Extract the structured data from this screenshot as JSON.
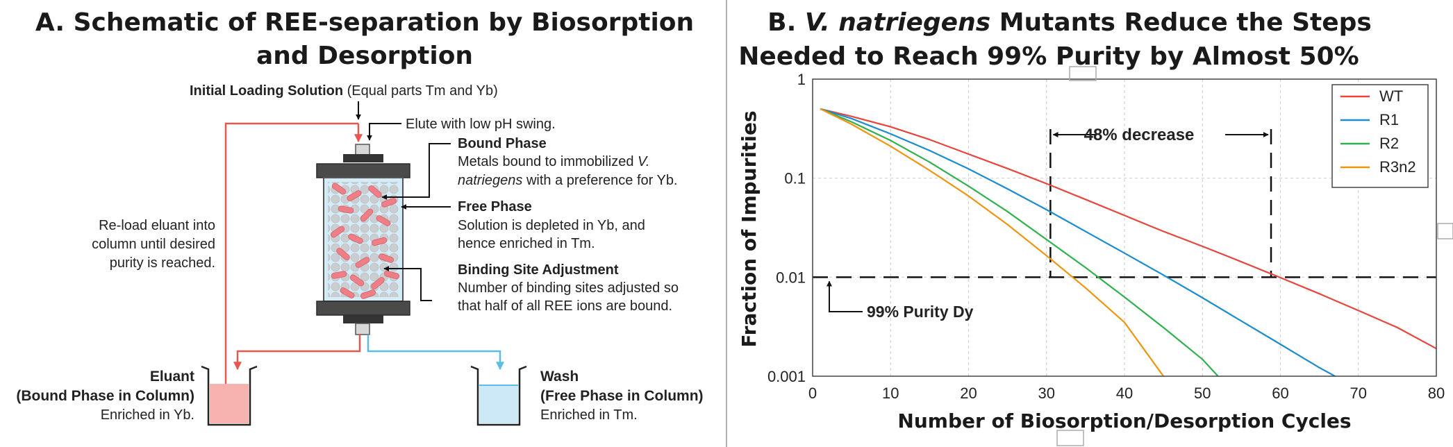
{
  "panel_a": {
    "title_line1": "A. Schematic of REE-separation by Biosorption",
    "title_line2": "and Desorption",
    "initial_bold": "Initial Loading Solution",
    "initial_rest": " (Equal parts Tm and Yb)",
    "elute": "Elute with low pH swing.",
    "bound_title": "Bound Phase",
    "bound_line1_a": "Metals bound to immobilized ",
    "bound_line1_b": "V.",
    "bound_line2_a": "natriegens",
    "bound_line2_b": " with a preference for Yb.",
    "free_title": "Free Phase",
    "free_line1": "Solution is depleted in Yb, and",
    "free_line2": "hence enriched in Tm.",
    "bsa_title": "Binding Site Adjustment",
    "bsa_line1": "Number of binding sites adjusted so",
    "bsa_line2": "that half of all REE ions are bound.",
    "reload_line1": "Re-load eluant into",
    "reload_line2": "column until desired",
    "reload_line3": "purity is reached.",
    "eluant_title1": "Eluant",
    "eluant_title2": "(Bound Phase in Column)",
    "eluant_sub": "Enriched in Yb.",
    "wash_title1": "Wash",
    "wash_title2": "(Free Phase in Column)",
    "wash_sub": "Enriched in Tm.",
    "colors": {
      "red": "#e8574f",
      "blue": "#5bbde6",
      "eluant_fill": "#f7b3b0",
      "wash_fill": "#cde9f7"
    }
  },
  "panel_b": {
    "title_line1_a": "B. ",
    "title_line1_b": "V. natriegens",
    "title_line1_c": " Mutants Reduce the Steps",
    "title_line2": "Needed to Reach 99% Purity by Almost 50%",
    "annotation_decrease": "48% decrease",
    "annotation_purity": "99% Purity Dy"
  },
  "chart_data": {
    "type": "line",
    "xlabel": "Number of Biosorption/Desorption Cycles",
    "ylabel": "Fraction of Impurities",
    "xlim": [
      0,
      80
    ],
    "ylim": [
      0.001,
      1
    ],
    "yscale": "log",
    "xticks": [
      "0",
      "10",
      "20",
      "30",
      "40",
      "50",
      "60",
      "70",
      "80"
    ],
    "yticks": [
      "1",
      "0.1",
      "0.01",
      "0.001"
    ],
    "grid": true,
    "legend_position": "top-right",
    "reference_y": 0.01,
    "marker_x": [
      30.5,
      58.8
    ],
    "series": [
      {
        "name": "WT",
        "color": "#e8453c",
        "x": [
          1,
          5,
          10,
          15,
          20,
          25,
          30,
          35,
          40,
          45,
          50,
          55,
          60,
          65,
          70,
          75,
          80
        ],
        "y": [
          0.5,
          0.42,
          0.33,
          0.245,
          0.175,
          0.125,
          0.088,
          0.061,
          0.042,
          0.029,
          0.0205,
          0.0143,
          0.0099,
          0.0068,
          0.0046,
          0.0031,
          0.0019
        ]
      },
      {
        "name": "R1",
        "color": "#1a8ccf",
        "x": [
          1,
          5,
          10,
          15,
          20,
          25,
          30,
          35,
          40,
          45,
          50,
          55,
          60,
          65,
          67
        ],
        "y": [
          0.5,
          0.4,
          0.28,
          0.19,
          0.124,
          0.078,
          0.048,
          0.029,
          0.0175,
          0.0105,
          0.0062,
          0.0036,
          0.0021,
          0.00122,
          0.001
        ]
      },
      {
        "name": "R2",
        "color": "#2fb14c",
        "x": [
          1,
          5,
          10,
          15,
          20,
          25,
          30,
          35,
          40,
          45,
          50,
          52
        ],
        "y": [
          0.5,
          0.37,
          0.24,
          0.145,
          0.083,
          0.046,
          0.024,
          0.0125,
          0.0063,
          0.0031,
          0.00148,
          0.001
        ]
      },
      {
        "name": "R3n2",
        "color": "#f0940e",
        "x": [
          1,
          5,
          10,
          15,
          20,
          25,
          30,
          35,
          40,
          45
        ],
        "y": [
          0.5,
          0.35,
          0.21,
          0.12,
          0.066,
          0.034,
          0.0165,
          0.0078,
          0.0035,
          0.001
        ]
      }
    ]
  }
}
